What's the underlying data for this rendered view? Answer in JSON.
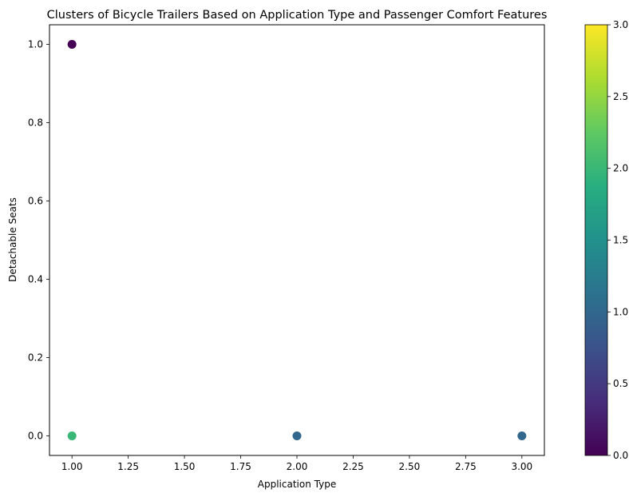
{
  "chart_data": {
    "type": "scatter",
    "title": "Clusters of Bicycle Trailers Based on Application Type and Passenger Comfort Features",
    "xlabel": "Application Type",
    "ylabel": "Detachable Seats",
    "xlim": [
      0.9,
      3.1
    ],
    "ylim": [
      -0.05,
      1.05
    ],
    "xticks": [
      1.0,
      1.25,
      1.5,
      1.75,
      2.0,
      2.25,
      2.5,
      2.75,
      3.0
    ],
    "xtick_labels": [
      "1.00",
      "1.25",
      "1.50",
      "1.75",
      "2.00",
      "2.25",
      "2.50",
      "2.75",
      "3.00"
    ],
    "yticks": [
      0.0,
      0.2,
      0.4,
      0.6,
      0.8,
      1.0
    ],
    "ytick_labels": [
      "0.0",
      "0.2",
      "0.4",
      "0.6",
      "0.8",
      "1.0"
    ],
    "grid": false,
    "colormap": "viridis",
    "points": [
      {
        "x": 1,
        "y": 1,
        "cluster": 0
      },
      {
        "x": 1,
        "y": 0,
        "cluster": 2
      },
      {
        "x": 2,
        "y": 0,
        "cluster": 1
      },
      {
        "x": 3,
        "y": 0,
        "cluster": 1
      }
    ],
    "colorbar": {
      "range": [
        0,
        3
      ],
      "ticks": [
        0.0,
        0.5,
        1.0,
        1.5,
        2.0,
        2.5,
        3.0
      ],
      "tick_labels": [
        "0.0",
        "0.5",
        "1.0",
        "1.5",
        "2.0",
        "2.5",
        "3.0"
      ]
    }
  }
}
